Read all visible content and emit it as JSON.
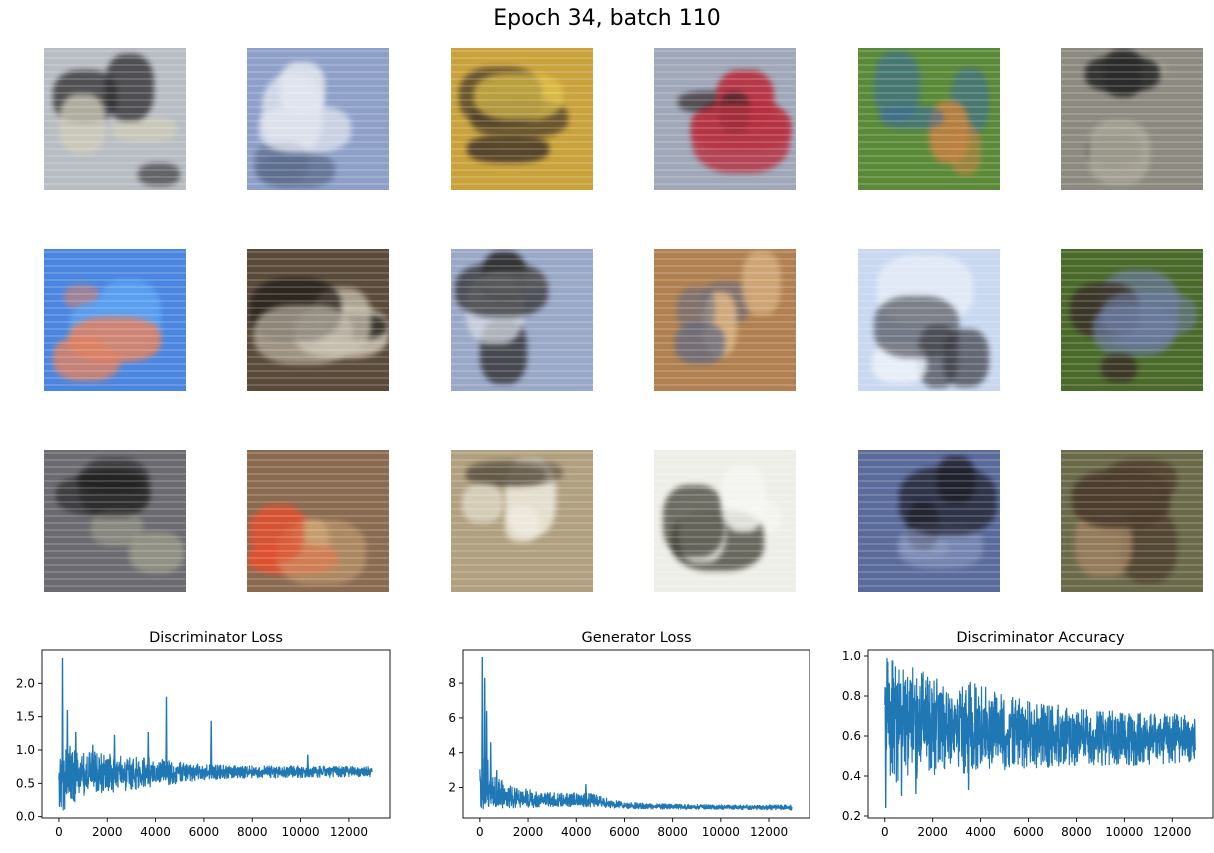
{
  "figure": {
    "suptitle": "Epoch 34, batch 110"
  },
  "samples": [
    {
      "colors": [
        "#b8bdc4",
        "#2c2a2c",
        "#d0cdb8"
      ]
    },
    {
      "colors": [
        "#8ea0c8",
        "#e2e6ef",
        "#5a6a8a"
      ]
    },
    {
      "colors": [
        "#c9a23c",
        "#4a3a28",
        "#e6c84a"
      ]
    },
    {
      "colors": [
        "#9fa7b8",
        "#b83040",
        "#2a2020"
      ]
    },
    {
      "colors": [
        "#5a8a38",
        "#3a6a9a",
        "#c08040"
      ]
    },
    {
      "colors": [
        "#8c8a80",
        "#2a2a2a",
        "#a9a698"
      ]
    },
    {
      "colors": [
        "#4a86e0",
        "#e08060",
        "#5aa0f0"
      ]
    },
    {
      "colors": [
        "#5a4a3a",
        "#c8c0b0",
        "#201c18"
      ]
    },
    {
      "colors": [
        "#9aa8c8",
        "#303030",
        "#d8dce6"
      ]
    },
    {
      "colors": [
        "#b08050",
        "#606880",
        "#d8b080"
      ]
    },
    {
      "colors": [
        "#c8d8f0",
        "#3a3a40",
        "#f0f4fa"
      ]
    },
    {
      "colors": [
        "#4a6a2a",
        "#6a7aa0",
        "#3a3028"
      ]
    },
    {
      "colors": [
        "#6a6a70",
        "#202020",
        "#9a9a8a"
      ]
    },
    {
      "colors": [
        "#8a6a50",
        "#e05030",
        "#c8a070"
      ]
    },
    {
      "colors": [
        "#b0a080",
        "#f0ece0",
        "#5a5040"
      ]
    },
    {
      "colors": [
        "#eeeee8",
        "#f6f6f2",
        "#3a3a30"
      ]
    },
    {
      "colors": [
        "#5a6a9a",
        "#1a1a22",
        "#8a98c0"
      ]
    },
    {
      "colors": [
        "#6a6a4a",
        "#4a3a2a",
        "#a08060"
      ]
    }
  ],
  "chart_data": [
    {
      "type": "line",
      "title": "Discriminator Loss",
      "xlim": [
        -700,
        13700
      ],
      "ylim": [
        -0.02,
        2.5
      ],
      "xticks": [
        0,
        2000,
        4000,
        6000,
        8000,
        10000,
        12000
      ],
      "yticks": [
        0.0,
        0.5,
        1.0,
        1.5,
        2.0
      ],
      "xtick_labels": [
        "0",
        "2000",
        "4000",
        "6000",
        "8000",
        "10000",
        "12000"
      ],
      "ytick_labels": [
        "0.0",
        "0.5",
        "1.0",
        "1.5",
        "2.0"
      ],
      "color": "#1f77b4",
      "n_iterations": 12960,
      "envelope": [
        {
          "x": 0,
          "lo": 0.05,
          "hi": 1.0,
          "mean": 0.55
        },
        {
          "x": 500,
          "lo": 0.1,
          "hi": 1.1,
          "mean": 0.6
        },
        {
          "x": 1000,
          "lo": 0.3,
          "hi": 1.0,
          "mean": 0.65
        },
        {
          "x": 2000,
          "lo": 0.35,
          "hi": 0.95,
          "mean": 0.65
        },
        {
          "x": 3000,
          "lo": 0.4,
          "hi": 0.9,
          "mean": 0.66
        },
        {
          "x": 4000,
          "lo": 0.45,
          "hi": 0.88,
          "mean": 0.67
        },
        {
          "x": 5000,
          "lo": 0.5,
          "hi": 0.82,
          "mean": 0.67
        },
        {
          "x": 6000,
          "lo": 0.55,
          "hi": 0.78,
          "mean": 0.67
        },
        {
          "x": 8000,
          "lo": 0.58,
          "hi": 0.76,
          "mean": 0.67
        },
        {
          "x": 10000,
          "lo": 0.58,
          "hi": 0.76,
          "mean": 0.68
        },
        {
          "x": 12960,
          "lo": 0.6,
          "hi": 0.75,
          "mean": 0.68
        }
      ],
      "spikes": [
        {
          "x": 150,
          "y": 2.38
        },
        {
          "x": 350,
          "y": 1.6
        },
        {
          "x": 700,
          "y": 1.27
        },
        {
          "x": 1400,
          "y": 1.08
        },
        {
          "x": 2300,
          "y": 1.23
        },
        {
          "x": 3700,
          "y": 1.27
        },
        {
          "x": 4450,
          "y": 1.8
        },
        {
          "x": 6300,
          "y": 1.44
        },
        {
          "x": 10300,
          "y": 0.93
        }
      ]
    },
    {
      "type": "line",
      "title": "Generator Loss",
      "xlim": [
        -700,
        13700
      ],
      "ylim": [
        0.25,
        9.9
      ],
      "xticks": [
        0,
        2000,
        4000,
        6000,
        8000,
        10000,
        12000
      ],
      "yticks": [
        2,
        4,
        6,
        8
      ],
      "xtick_labels": [
        "0",
        "2000",
        "4000",
        "6000",
        "8000",
        "10000",
        "12000"
      ],
      "ytick_labels": [
        "2",
        "4",
        "6",
        "8"
      ],
      "color": "#1f77b4",
      "n_iterations": 12960,
      "envelope": [
        {
          "x": 0,
          "lo": 0.7,
          "hi": 4.5,
          "mean": 1.5
        },
        {
          "x": 300,
          "lo": 0.8,
          "hi": 4.0,
          "mean": 1.8
        },
        {
          "x": 700,
          "lo": 0.8,
          "hi": 2.6,
          "mean": 1.4
        },
        {
          "x": 1500,
          "lo": 0.8,
          "hi": 2.0,
          "mean": 1.3
        },
        {
          "x": 3000,
          "lo": 0.9,
          "hi": 1.7,
          "mean": 1.2
        },
        {
          "x": 4500,
          "lo": 0.9,
          "hi": 1.7,
          "mean": 1.2
        },
        {
          "x": 6000,
          "lo": 0.8,
          "hi": 1.15,
          "mean": 0.95
        },
        {
          "x": 8000,
          "lo": 0.75,
          "hi": 1.05,
          "mean": 0.9
        },
        {
          "x": 10000,
          "lo": 0.75,
          "hi": 1.0,
          "mean": 0.88
        },
        {
          "x": 12960,
          "lo": 0.7,
          "hi": 1.0,
          "mean": 0.86
        }
      ],
      "spikes": [
        {
          "x": 100,
          "y": 9.5
        },
        {
          "x": 200,
          "y": 8.3
        },
        {
          "x": 280,
          "y": 6.4
        },
        {
          "x": 450,
          "y": 4.6
        },
        {
          "x": 700,
          "y": 3.0
        },
        {
          "x": 4400,
          "y": 2.2
        }
      ]
    },
    {
      "type": "line",
      "title": "Discriminator Accuracy",
      "xlim": [
        -700,
        13700
      ],
      "ylim": [
        0.19,
        1.03
      ],
      "xticks": [
        0,
        2000,
        4000,
        6000,
        8000,
        10000,
        12000
      ],
      "yticks": [
        0.2,
        0.4,
        0.6,
        0.8,
        1.0
      ],
      "xtick_labels": [
        "0",
        "2000",
        "4000",
        "6000",
        "8000",
        "10000",
        "12000"
      ],
      "ytick_labels": [
        "0.2",
        "0.4",
        "0.6",
        "0.8",
        "1.0"
      ],
      "color": "#1f77b4",
      "n_iterations": 12960,
      "envelope": [
        {
          "x": 0,
          "lo": 0.35,
          "hi": 1.0,
          "mean": 0.75
        },
        {
          "x": 1000,
          "lo": 0.38,
          "hi": 0.95,
          "mean": 0.7
        },
        {
          "x": 2000,
          "lo": 0.4,
          "hi": 0.9,
          "mean": 0.68
        },
        {
          "x": 4000,
          "lo": 0.42,
          "hi": 0.86,
          "mean": 0.65
        },
        {
          "x": 6000,
          "lo": 0.44,
          "hi": 0.78,
          "mean": 0.62
        },
        {
          "x": 8000,
          "lo": 0.45,
          "hi": 0.74,
          "mean": 0.6
        },
        {
          "x": 10000,
          "lo": 0.45,
          "hi": 0.72,
          "mean": 0.59
        },
        {
          "x": 12960,
          "lo": 0.47,
          "hi": 0.71,
          "mean": 0.59
        }
      ],
      "spikes": [
        {
          "x": 40,
          "y": 0.24
        },
        {
          "x": 700,
          "y": 0.3
        },
        {
          "x": 1300,
          "y": 0.31
        },
        {
          "x": 3500,
          "y": 0.33
        }
      ]
    }
  ]
}
